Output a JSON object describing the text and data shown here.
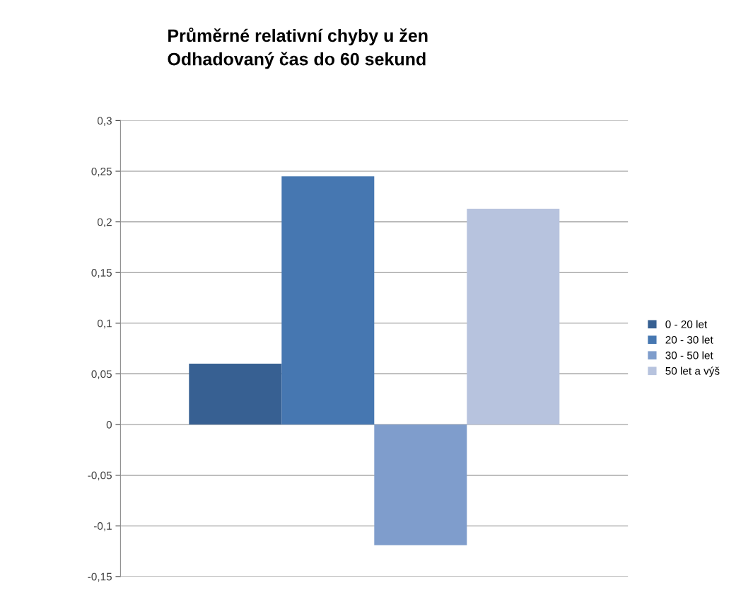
{
  "chart_data": {
    "type": "bar",
    "title": "Průměrné relativní chyby u žen\nOdhadovaný čas do 60 sekund",
    "categories": [
      null
    ],
    "series": [
      {
        "name": "0 - 20 let",
        "color": "#376092",
        "values": [
          0.06
        ]
      },
      {
        "name": "20 - 30 let",
        "color": "#4677b1",
        "values": [
          0.245
        ]
      },
      {
        "name": "30 - 50 let",
        "color": "#7f9dcc",
        "values": [
          -0.119
        ]
      },
      {
        "name": "50 let a výš",
        "color": "#b7c3de",
        "values": [
          0.213
        ]
      }
    ],
    "ylim": [
      -0.15,
      0.3
    ],
    "yticks": [
      {
        "value": -0.15,
        "label": "-0,15"
      },
      {
        "value": -0.1,
        "label": "-0,1"
      },
      {
        "value": -0.05,
        "label": "-0,05"
      },
      0,
      {
        "value": 0.05,
        "label": "0,05"
      },
      {
        "value": 0.1,
        "label": "0,1"
      },
      {
        "value": 0.15,
        "label": "0,15"
      },
      {
        "value": 0.2,
        "label": "0,2"
      },
      {
        "value": 0.25,
        "label": "0,25"
      },
      {
        "value": 0.3,
        "label": "0,3"
      }
    ],
    "grid": "y",
    "legend": "right",
    "tick_labels": "y"
  }
}
